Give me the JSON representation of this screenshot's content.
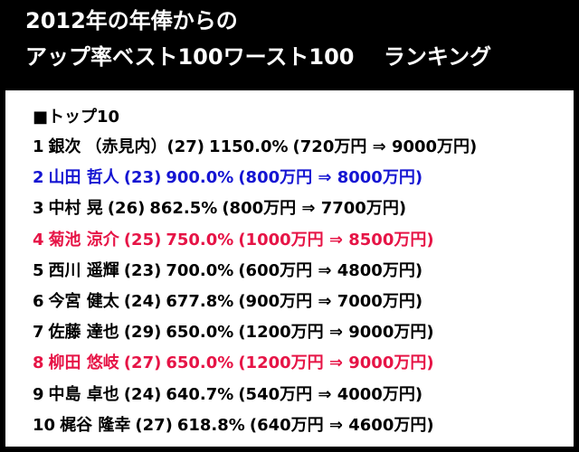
{
  "header": {
    "line1": "2012年の年俸からの",
    "line2": "アップ率ベスト100ワースト100　 ランキング"
  },
  "section_title": "■トップ10",
  "colors": {
    "background": "#000000",
    "panel": "#ffffff",
    "default_text": "#000000",
    "blue_highlight": "#1414d2",
    "red_highlight": "#e61446"
  },
  "rankings": [
    {
      "rank": "1",
      "name": "銀次",
      "age": "（赤見内）(27)",
      "rate": "1150.0%",
      "salary": "(720万円 ⇒ 9000万円)",
      "color": "#000000"
    },
    {
      "rank": "2",
      "name": "山田 哲人",
      "age": "(23)",
      "rate": "900.0%",
      "salary": "(800万円 ⇒ 8000万円)",
      "color": "#1414d2"
    },
    {
      "rank": "3",
      "name": "中村 晃",
      "age": "(26)",
      "rate": "862.5%",
      "salary": "(800万円 ⇒ 7700万円)",
      "color": "#000000"
    },
    {
      "rank": "4",
      "name": "菊池 涼介",
      "age": "(25)",
      "rate": "750.0%",
      "salary": "(1000万円 ⇒ 8500万円)",
      "color": "#e61446"
    },
    {
      "rank": "5",
      "name": "西川 遥輝",
      "age": "(23)",
      "rate": "700.0%",
      "salary": "(600万円 ⇒ 4800万円)",
      "color": "#000000"
    },
    {
      "rank": "6",
      "name": "今宮 健太",
      "age": "(24)",
      "rate": "677.8%",
      "salary": "(900万円 ⇒ 7000万円)",
      "color": "#000000"
    },
    {
      "rank": "7",
      "name": "佐藤 達也",
      "age": "(29)",
      "rate": "650.0%",
      "salary": "(1200万円 ⇒ 9000万円)",
      "color": "#000000"
    },
    {
      "rank": "8",
      "name": "柳田 悠岐",
      "age": "(27)",
      "rate": "650.0%",
      "salary": "(1200万円 ⇒ 9000万円)",
      "color": "#e61446"
    },
    {
      "rank": "9",
      "name": "中島 卓也",
      "age": "(24)",
      "rate": "640.7%",
      "salary": "(540万円 ⇒ 4000万円)",
      "color": "#000000"
    },
    {
      "rank": "10",
      "name": "梶谷 隆幸",
      "age": "(27)",
      "rate": "618.8%",
      "salary": "(640万円 ⇒ 4600万円)",
      "color": "#000000"
    }
  ]
}
